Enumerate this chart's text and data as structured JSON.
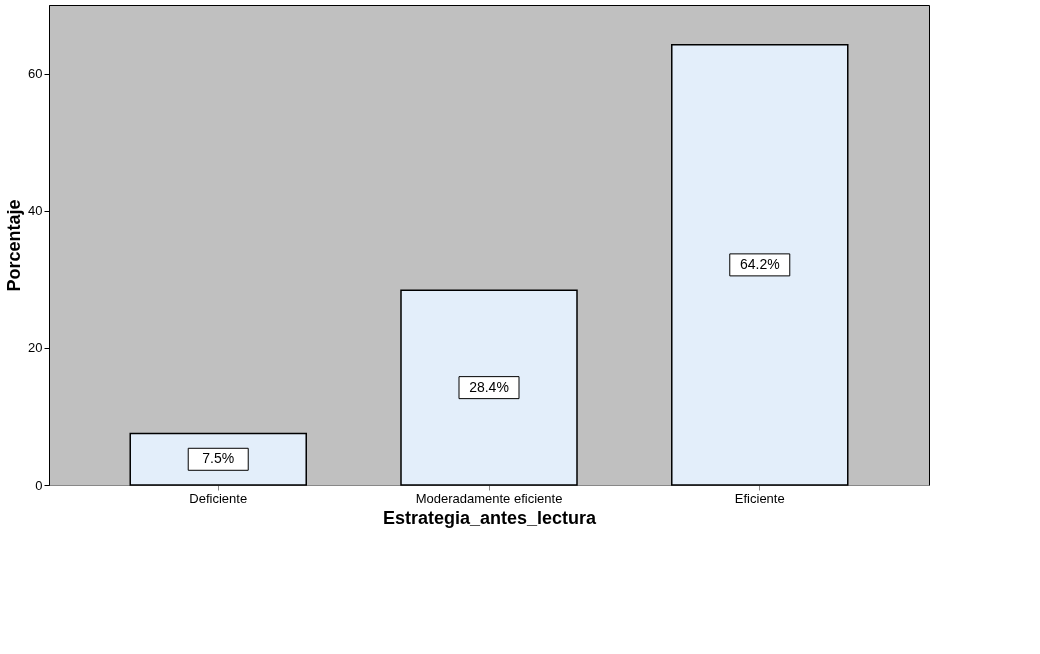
{
  "chart_data": {
    "type": "bar",
    "categories": [
      "Deficiente",
      "Moderadamente eficiente",
      "Eficiente"
    ],
    "values": [
      7.5,
      28.4,
      64.2
    ],
    "value_labels": [
      "7.5%",
      "28.4%",
      "64.2%"
    ],
    "color": "#e3eefa",
    "xlabel": "Estrategia_antes_lectura",
    "ylabel": "Porcentaje",
    "ylim": [
      0,
      70
    ],
    "yticks": [
      0,
      20,
      40,
      60
    ],
    "grid": false
  }
}
